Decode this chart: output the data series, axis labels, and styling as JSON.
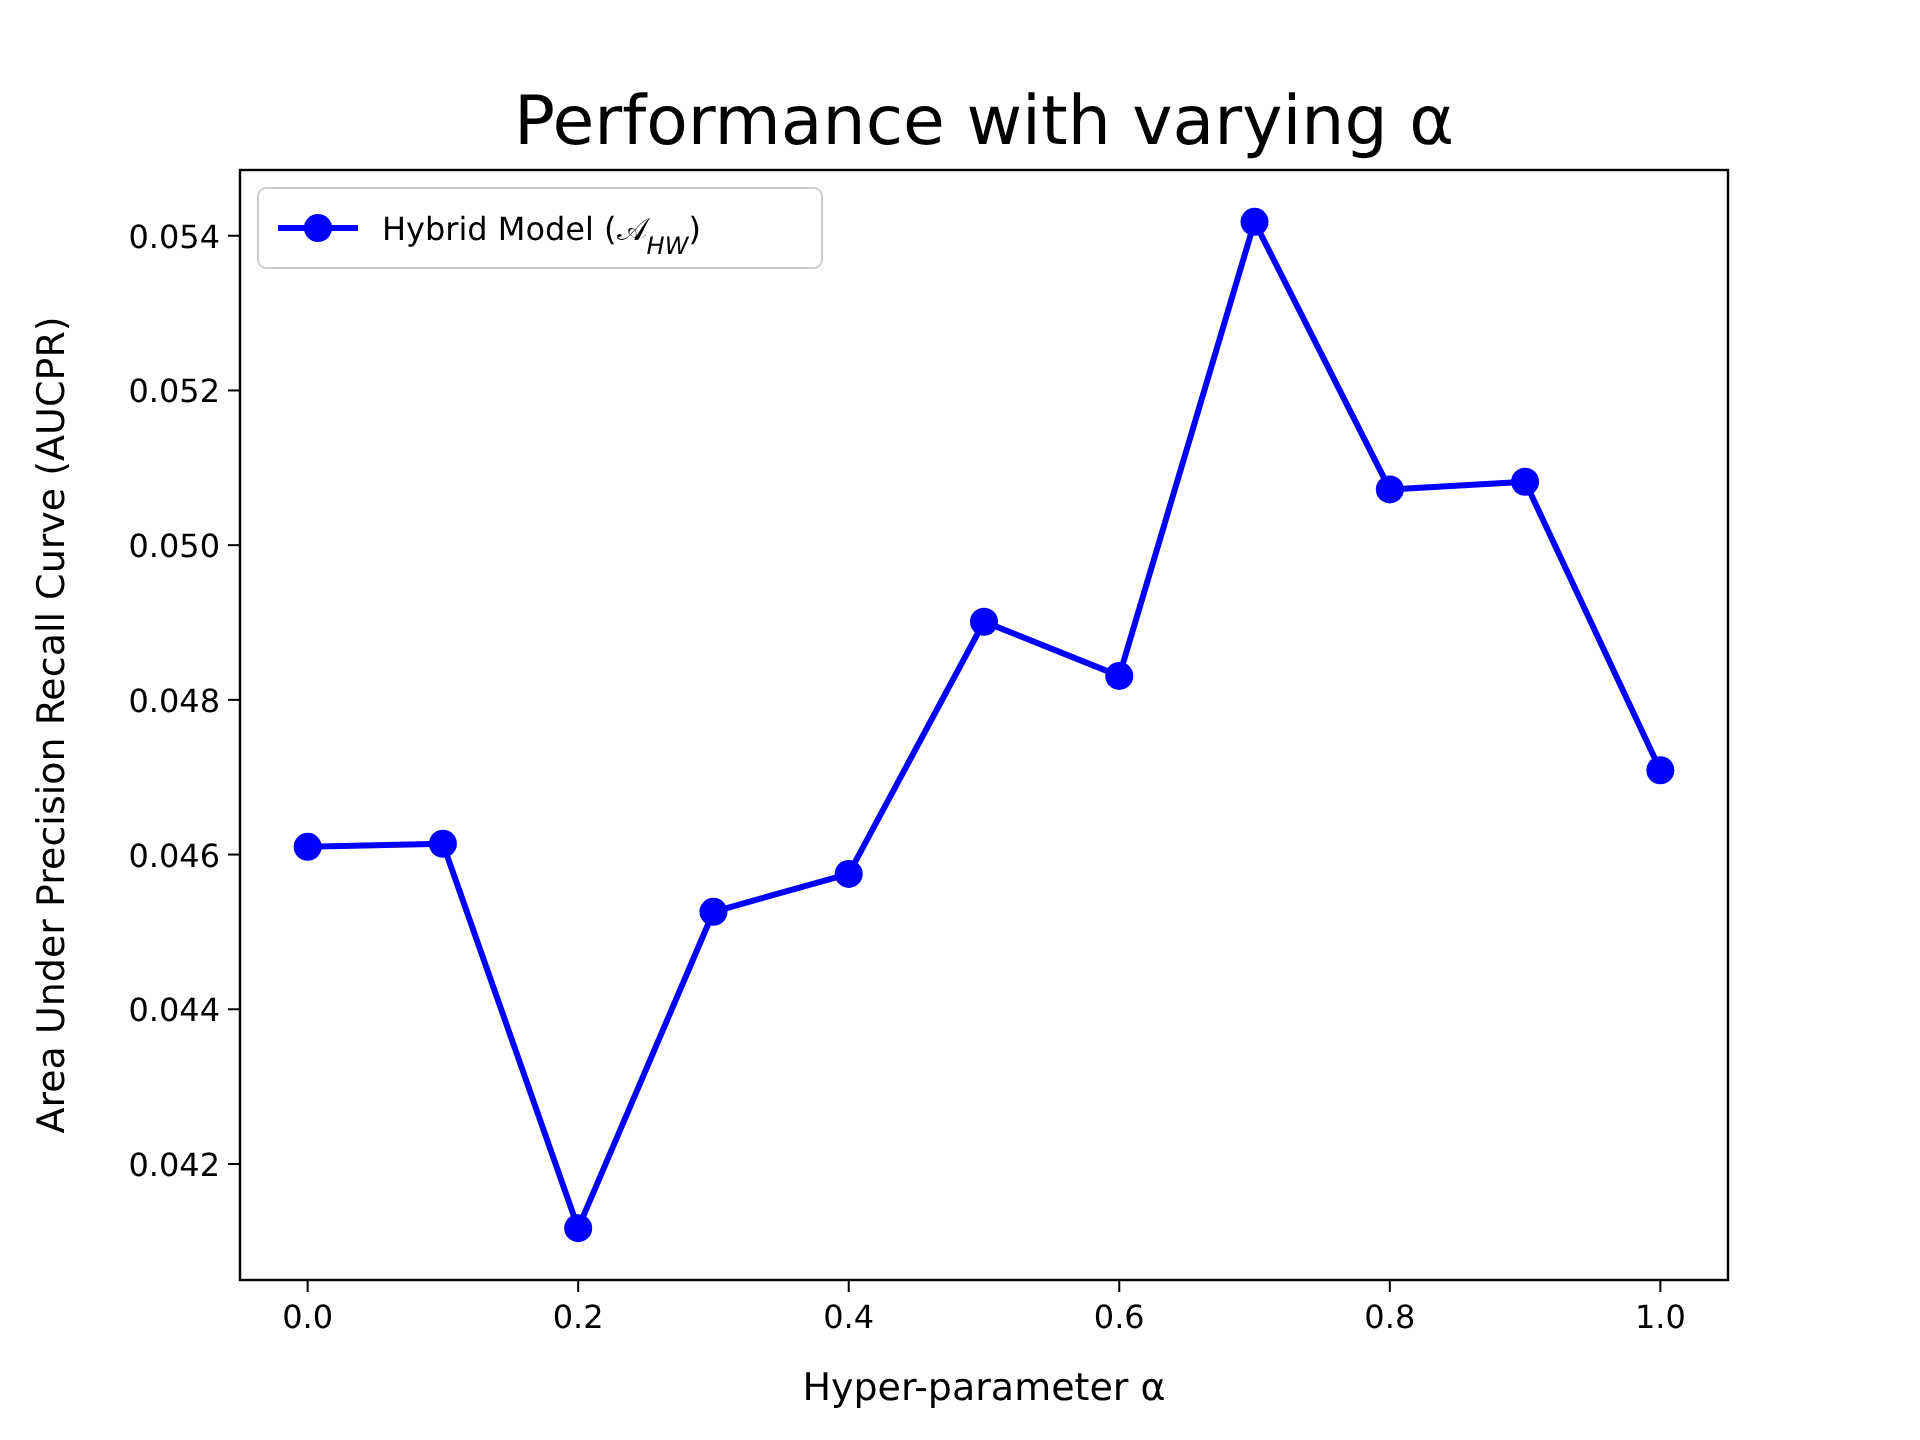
{
  "chart_data": {
    "type": "line",
    "title": "Performance with varying α",
    "xlabel": "Hyper-parameter α",
    "ylabel": "Area Under Precision Recall Curve (AUCPR)",
    "x": [
      0.0,
      0.1,
      0.2,
      0.3,
      0.4,
      0.5,
      0.6,
      0.7,
      0.8,
      0.9,
      1.0
    ],
    "series": [
      {
        "name": "Hybrid Model (𝒜$_{HW}$)",
        "color": "#0000ff",
        "values": [
          0.0461,
          0.04614,
          0.04117,
          0.04526,
          0.04575,
          0.04901,
          0.04831,
          0.05418,
          0.05072,
          0.05082,
          0.04709
        ]
      }
    ],
    "xlim": [
      -0.05,
      1.05
    ],
    "xticks": [
      {
        "value": 0,
        "label": "0.0"
      },
      0.2,
      0.4,
      0.6,
      0.8,
      {
        "value": 1,
        "label": "1.0"
      }
    ],
    "ylim": [
      0.0405,
      0.05485
    ],
    "yticks": [
      0.042,
      0.044,
      0.046,
      0.048,
      {
        "value": 0.05,
        "label": "0.050"
      },
      0.052,
      0.054
    ],
    "grid": false,
    "legend": "top left",
    "marker": "circle",
    "line_style": "solid"
  }
}
